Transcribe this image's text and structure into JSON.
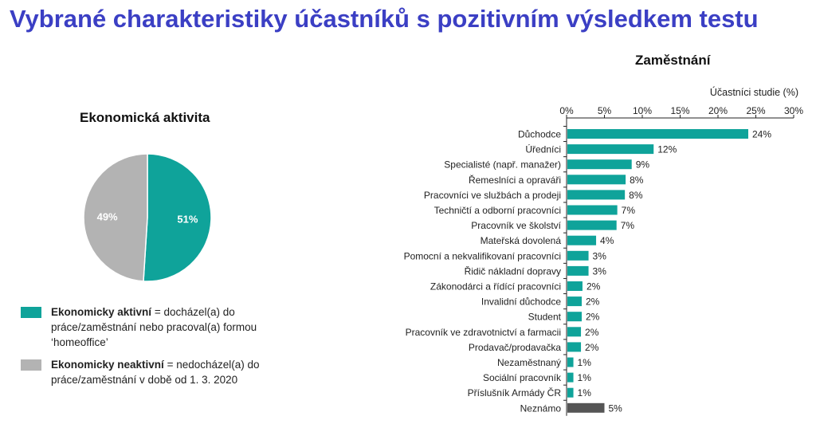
{
  "title": "Vybrané charakteristiky účastníků s pozitivním výsledkem testu",
  "chart_data": [
    {
      "type": "pie",
      "title": "Ekonomická aktivita",
      "slices": [
        {
          "label": "Ekonomicky aktivní",
          "value": 51,
          "display": "51%",
          "color": "#0fa39a"
        },
        {
          "label": "Ekonomicky neaktivní",
          "value": 49,
          "display": "49%",
          "color": "#b3b3b3"
        }
      ],
      "legend": [
        {
          "bold": "Ekonomicky aktivní",
          "text": " = docházel(a) do práce/zaměstnání nebo pracoval(a) formou ‘homeoffice’",
          "color": "#0fa39a"
        },
        {
          "bold": "Ekonomicky neaktivní",
          "text": " = nedocházel(a) do práce/zaměstnání v době od 1. 3. 2020",
          "color": "#b3b3b3"
        }
      ]
    },
    {
      "type": "bar",
      "orientation": "horizontal",
      "title": "Zaměstnání",
      "xlabel": "Účastníci studie (%)",
      "xlim": [
        0,
        30
      ],
      "xticks": [
        "0%",
        "5%",
        "10%",
        "15%",
        "20%",
        "25%",
        "30%"
      ],
      "categories": [
        "Důchodce",
        "Úředníci",
        "Specialisté (např. manažer)",
        "Řemeslníci a opraváři",
        "Pracovníci ve službách a prodeji",
        "Techničtí a odborní pracovníci",
        "Pracovník ve školství",
        "Mateřská dovolená",
        "Pomocní a nekvalifikovaní pracovníci",
        "Řidič nákladní dopravy",
        "Zákonodárci a řídící pracovníci",
        "Invalidní důchodce",
        "Student",
        "Pracovník ve zdravotnictví a farmacii",
        "Prodavač/prodavačka",
        "Nezaměstnaný",
        "Sociální pracovník",
        "Příslušník Armády ČR",
        "Neznámo"
      ],
      "values": [
        24,
        11.5,
        8.6,
        7.8,
        7.7,
        6.7,
        6.6,
        3.9,
        2.9,
        2.9,
        2.1,
        2.0,
        2.0,
        1.9,
        1.9,
        0.9,
        0.9,
        0.9,
        5.0
      ],
      "labels": [
        "24%",
        "12%",
        "9%",
        "8%",
        "8%",
        "7%",
        "7%",
        "4%",
        "3%",
        "3%",
        "2%",
        "2%",
        "2%",
        "2%",
        "2%",
        "1%",
        "1%",
        "1%",
        "5%"
      ],
      "colors": [
        "#0fa39a",
        "#0fa39a",
        "#0fa39a",
        "#0fa39a",
        "#0fa39a",
        "#0fa39a",
        "#0fa39a",
        "#0fa39a",
        "#0fa39a",
        "#0fa39a",
        "#0fa39a",
        "#0fa39a",
        "#0fa39a",
        "#0fa39a",
        "#0fa39a",
        "#0fa39a",
        "#0fa39a",
        "#0fa39a",
        "#555555"
      ]
    }
  ]
}
